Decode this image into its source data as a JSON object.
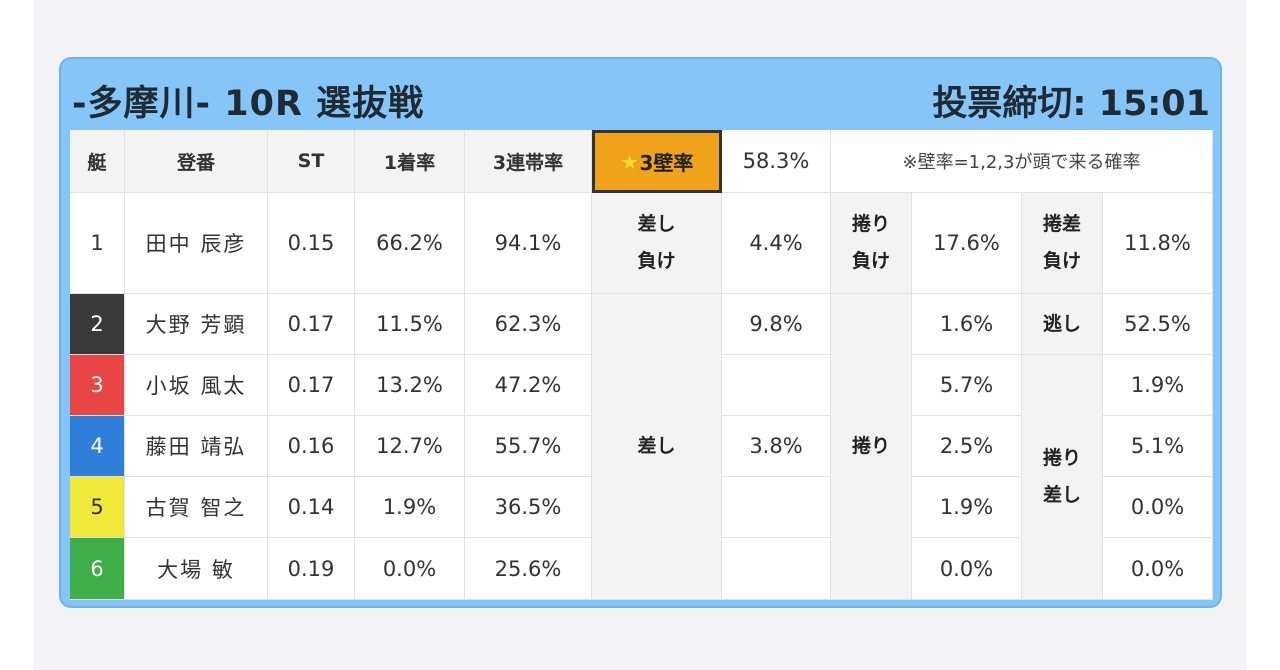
{
  "header": {
    "race_title": "-多摩川- 10R 選抜戦",
    "deadline": "投票締切: 15:01"
  },
  "table_header": {
    "boat": "艇",
    "register": "登番",
    "st": "ST",
    "first_rate": "1着率",
    "trifecta_rate": "3連帯率",
    "wall_label": "3壁率",
    "wall_star": "★",
    "wall_value": "58.3%",
    "note": "※壁率=1,2,3が頭で来る確率"
  },
  "racers": [
    {
      "boat": "1",
      "name": "田中 辰彦",
      "st": "0.15",
      "first": "66.2%",
      "trifecta": "94.1%",
      "boat_color": "#ffffff"
    },
    {
      "boat": "2",
      "name": "大野 芳顕",
      "st": "0.17",
      "first": "11.5%",
      "trifecta": "62.3%",
      "boat_color": "#333333"
    },
    {
      "boat": "3",
      "name": "小坂 風太",
      "st": "0.17",
      "first": "13.2%",
      "trifecta": "47.2%",
      "boat_color": "#e84545"
    },
    {
      "boat": "4",
      "name": "藤田 靖弘",
      "st": "0.16",
      "first": "12.7%",
      "trifecta": "55.7%",
      "boat_color": "#2f7fd8"
    },
    {
      "boat": "5",
      "name": "古賀 智之",
      "st": "0.14",
      "first": "1.9%",
      "trifecta": "36.5%",
      "boat_color": "#f0e93a"
    },
    {
      "boat": "6",
      "name": "大場 敏",
      "st": "0.19",
      "first": "0.0%",
      "trifecta": "25.6%",
      "boat_color": "#3fae49"
    }
  ],
  "patterns": {
    "sashi_make": {
      "line1": "差し",
      "line2": "負け",
      "value": "4.4%"
    },
    "makuri_make": {
      "line1": "捲り",
      "line2": "負け",
      "value": "17.6%"
    },
    "makurisashi_make": {
      "line1": "捲差",
      "line2": "負け",
      "value": "11.8%"
    },
    "sashi": {
      "label": "差し",
      "values": [
        "9.8%",
        "",
        "3.8%",
        "",
        ""
      ]
    },
    "makuri": {
      "label": "捲り",
      "values": [
        "1.6%",
        "5.7%",
        "2.5%",
        "1.9%",
        "0.0%"
      ]
    },
    "nige": {
      "label": "逃し",
      "value": "52.5%"
    },
    "makurisashi": {
      "line1": "捲り",
      "line2": "差し",
      "values": [
        "1.9%",
        "5.1%",
        "0.0%",
        "0.0%"
      ]
    }
  }
}
